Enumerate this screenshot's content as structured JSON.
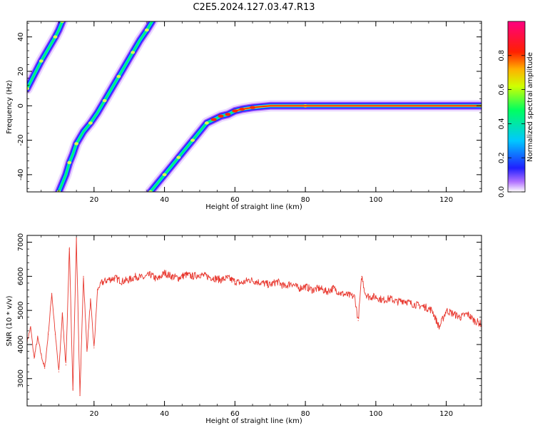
{
  "figure_title": "C2E5.2024.127.03.47.R13",
  "chart_data": [
    {
      "type": "heatmap",
      "xlabel": "Height of straight line (km)",
      "ylabel": "Frequency (Hz)",
      "xlim": [
        1,
        130
      ],
      "ylim": [
        -50,
        49
      ],
      "x_ticks": [
        20,
        40,
        60,
        80,
        100,
        120
      ],
      "y_ticks": [
        -40,
        -20,
        0,
        20,
        40
      ],
      "colorbar": {
        "label": "Normalized spectral amplitude",
        "range": [
          0,
          1
        ],
        "ticks": [
          0.0,
          0.2,
          0.4,
          0.6,
          0.8
        ],
        "colormap": [
          "#ffffff",
          "#a040ff",
          "#2020ff",
          "#00c0ff",
          "#00ff60",
          "#ffff00",
          "#ff8000",
          "#ff0000",
          "#ff0080"
        ]
      },
      "streaks": [
        {
          "name": "",
          "points": [
            [
              1,
              10
            ],
            [
              3,
              18
            ],
            [
              5,
              26
            ],
            [
              7,
              33
            ],
            [
              9,
              40
            ],
            [
              10,
              44
            ],
            [
              11,
              49
            ]
          ]
        },
        {
          "name": "",
          "points": [
            [
              10,
              -50
            ],
            [
              12,
              -40
            ],
            [
              13,
              -33
            ],
            [
              14,
              -28
            ],
            [
              15,
              -22
            ],
            [
              17,
              -15
            ],
            [
              19,
              -10
            ],
            [
              21,
              -4
            ],
            [
              23,
              3
            ],
            [
              25,
              10
            ],
            [
              27,
              17
            ],
            [
              29,
              24
            ],
            [
              31,
              31
            ],
            [
              33,
              38
            ],
            [
              35,
              44
            ],
            [
              36.5,
              49
            ]
          ]
        },
        {
          "name": "",
          "points": [
            [
              36,
              -50
            ],
            [
              38,
              -45
            ],
            [
              40,
              -40
            ],
            [
              42,
              -35
            ],
            [
              44,
              -30
            ],
            [
              46,
              -25
            ],
            [
              48,
              -20
            ],
            [
              50,
              -15
            ],
            [
              52,
              -10
            ],
            [
              54,
              -8
            ],
            [
              56,
              -6
            ],
            [
              58,
              -5
            ],
            [
              60,
              -3
            ],
            [
              62,
              -2
            ],
            [
              65,
              -1
            ],
            [
              70,
              0
            ],
            [
              80,
              0
            ],
            [
              100,
              0
            ],
            [
              130,
              0
            ]
          ]
        }
      ]
    },
    {
      "type": "line",
      "xlabel": "Height of straight line (km)",
      "ylabel": "SNR (10 * v/v)",
      "xlim": [
        1,
        130
      ],
      "ylim": [
        2200,
        7200
      ],
      "x_ticks": [
        20,
        40,
        60,
        80,
        100,
        120
      ],
      "y_ticks": [
        3000,
        4000,
        5000,
        6000,
        7000
      ],
      "line_color": "#e8382f",
      "series": [
        {
          "name": "",
          "x": [
            1,
            2,
            3,
            4,
            5,
            6,
            7,
            8,
            9,
            10,
            11,
            12,
            13,
            14,
            15,
            16,
            17,
            18,
            19,
            20,
            21,
            22,
            24,
            26,
            28,
            30,
            32,
            34,
            36,
            38,
            40,
            42,
            44,
            46,
            48,
            50,
            52,
            54,
            56,
            58,
            60,
            62,
            64,
            66,
            68,
            70,
            72,
            74,
            76,
            78,
            80,
            82,
            84,
            86,
            88,
            90,
            92,
            94,
            95,
            96,
            97,
            98,
            100,
            102,
            104,
            106,
            108,
            110,
            112,
            114,
            116,
            118,
            120,
            122,
            124,
            126,
            128,
            130
          ],
          "values": [
            4100,
            4500,
            3600,
            4200,
            3700,
            3300,
            4300,
            5500,
            4300,
            3200,
            4900,
            3400,
            6800,
            2700,
            7100,
            2500,
            6000,
            3800,
            5300,
            3900,
            5600,
            5800,
            5900,
            5950,
            5850,
            5900,
            6000,
            5950,
            6050,
            5900,
            6100,
            6000,
            5950,
            6050,
            6000,
            6050,
            6000,
            5950,
            5900,
            5950,
            5850,
            5800,
            5900,
            5850,
            5800,
            5750,
            5850,
            5700,
            5800,
            5650,
            5700,
            5600,
            5650,
            5550,
            5650,
            5500,
            5450,
            5400,
            4700,
            6000,
            5500,
            5400,
            5400,
            5300,
            5350,
            5250,
            5300,
            5200,
            5150,
            5100,
            5000,
            4500,
            5000,
            4900,
            4800,
            4900,
            4700,
            4600
          ]
        }
      ]
    }
  ]
}
